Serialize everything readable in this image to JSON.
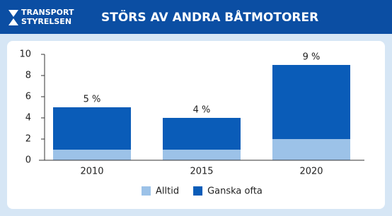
{
  "logo": [
    "TRANSPORT",
    "STYRELSEN"
  ],
  "chart_data": {
    "type": "stacked_bar",
    "title": "STÖRS AV ANDRA BÅTMOTORER",
    "categories": [
      "2010",
      "2015",
      "2020"
    ],
    "series": [
      {
        "name": "Alltid",
        "color": "#9cc2e8",
        "values": [
          1,
          1,
          2
        ]
      },
      {
        "name": "Ganska ofta",
        "color": "#0a5cb8",
        "values": [
          4,
          3,
          7
        ]
      }
    ],
    "totals": [
      5,
      4,
      9
    ],
    "total_labels": [
      "5 %",
      "4 %",
      "9 %"
    ],
    "ylim": [
      0,
      10
    ],
    "yticks": [
      0,
      2,
      4,
      6,
      8,
      10
    ],
    "legend": "bottom"
  }
}
